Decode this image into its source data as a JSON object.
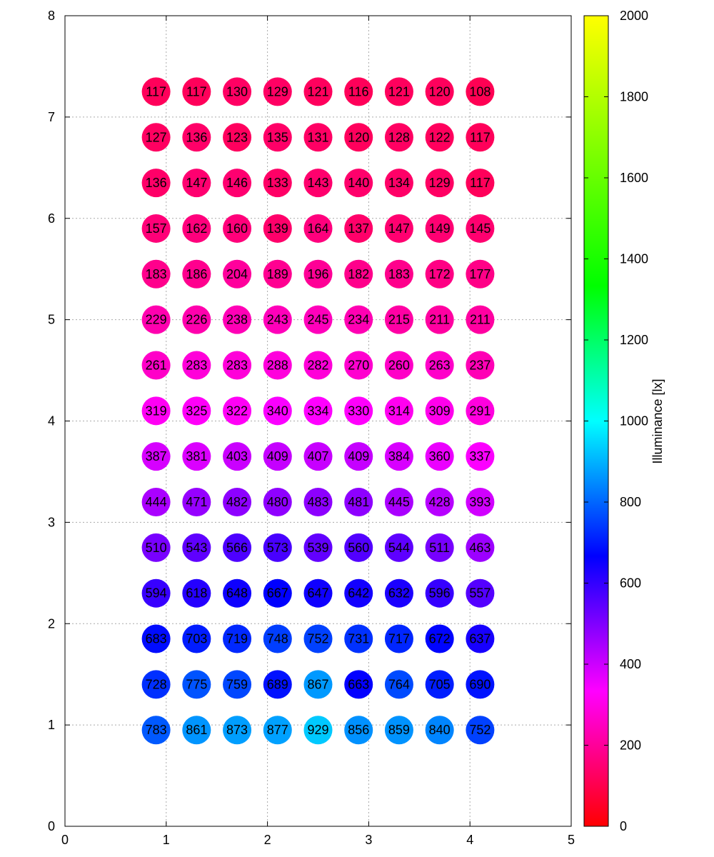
{
  "chart_data": {
    "type": "scatter",
    "title": "",
    "xlabel": "",
    "ylabel": "",
    "xlim": [
      0,
      5
    ],
    "ylim": [
      0,
      8
    ],
    "x_ticks": [
      "0",
      "1",
      "2",
      "3",
      "4",
      "5"
    ],
    "y_ticks": [
      "0",
      "1",
      "2",
      "3",
      "4",
      "5",
      "6",
      "7",
      "8"
    ],
    "grid": true,
    "x": [
      0.9,
      1.3,
      1.7,
      2.1,
      2.5,
      2.9,
      3.3,
      3.7,
      4.1
    ],
    "y": [
      7.25,
      6.8,
      6.35,
      5.9,
      5.45,
      5.0,
      4.55,
      4.1,
      3.65,
      3.2,
      2.75,
      2.3,
      1.85,
      1.4,
      0.95
    ],
    "values": [
      [
        117,
        117,
        130,
        129,
        121,
        116,
        121,
        120,
        108
      ],
      [
        127,
        136,
        123,
        135,
        131,
        120,
        128,
        122,
        117
      ],
      [
        136,
        147,
        146,
        133,
        143,
        140,
        134,
        129,
        117
      ],
      [
        157,
        162,
        160,
        139,
        164,
        137,
        147,
        149,
        145
      ],
      [
        183,
        186,
        204,
        189,
        196,
        182,
        183,
        172,
        177
      ],
      [
        229,
        226,
        238,
        243,
        245,
        234,
        215,
        211,
        211
      ],
      [
        261,
        283,
        283,
        288,
        282,
        270,
        260,
        263,
        237
      ],
      [
        319,
        325,
        322,
        340,
        334,
        330,
        314,
        309,
        291
      ],
      [
        387,
        381,
        403,
        409,
        407,
        409,
        384,
        360,
        337
      ],
      [
        444,
        471,
        482,
        480,
        483,
        481,
        445,
        428,
        393
      ],
      [
        510,
        543,
        566,
        573,
        539,
        560,
        544,
        511,
        463
      ],
      [
        594,
        618,
        648,
        667,
        647,
        642,
        632,
        596,
        557
      ],
      [
        683,
        703,
        719,
        748,
        752,
        731,
        717,
        672,
        637
      ],
      [
        728,
        775,
        759,
        689,
        867,
        663,
        764,
        705,
        690
      ],
      [
        783,
        861,
        873,
        877,
        929,
        856,
        859,
        840,
        752
      ]
    ],
    "colorbar": {
      "label": "Illuminance [lx]",
      "range": [
        0,
        2000
      ],
      "ticks": [
        "0",
        "200",
        "400",
        "600",
        "800",
        "1000",
        "1200",
        "1400",
        "1600",
        "1800",
        "2000"
      ],
      "colormap": "hsv-red-magenta-blue-cyan-green-yellow"
    }
  }
}
